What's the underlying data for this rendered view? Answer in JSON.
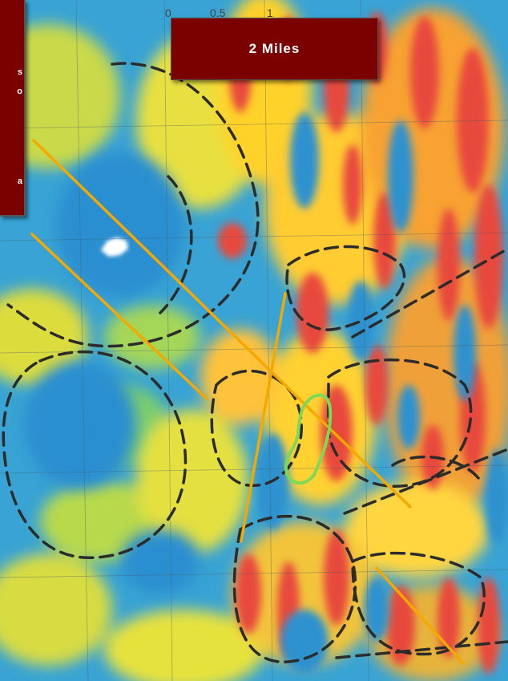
{
  "scale_bar": {
    "label": "2 Miles",
    "ticks": [
      "0",
      "0.5",
      "1"
    ]
  },
  "legend_panel": {
    "fragments": [
      "s",
      "o",
      "a"
    ]
  },
  "colors": {
    "panel_bg": "#7b0000",
    "panel_text": "#ffffff",
    "fault_lines": "#f5a800",
    "anomaly_outline": "#7ed957",
    "structure_outline": "#2b2b2b"
  }
}
